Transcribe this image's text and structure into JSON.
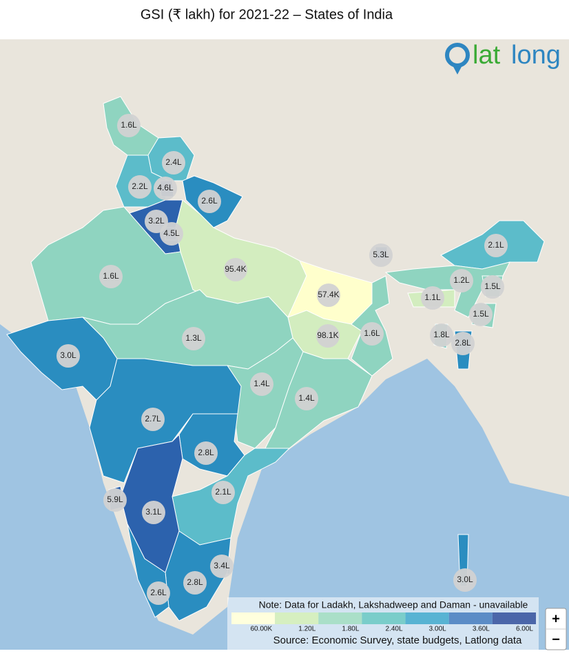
{
  "header": {
    "title": "GSI (₹ lakh) for 2021-22 – States of India"
  },
  "logo": {
    "part1": "lat",
    "part2": "long"
  },
  "regions": [
    {
      "label": "1.6L",
      "color": "#8fd4c0"
    },
    {
      "label": "2.4L",
      "color": "#5cbcca"
    },
    {
      "label": "2.2L",
      "color": "#5cbcca"
    },
    {
      "label": "4.6L",
      "color": "#2c62ad"
    },
    {
      "label": "2.6L",
      "color": "#2a8dc0"
    },
    {
      "label": "3.2L",
      "color": "#2c62ad"
    },
    {
      "label": "4.5L",
      "color": "#2c62ad"
    },
    {
      "label": "1.6L",
      "color": "#8fd4c0"
    },
    {
      "label": "95.4K",
      "color": "#d3edbf"
    },
    {
      "label": "57.4K",
      "color": "#ffffcc"
    },
    {
      "label": "5.3L",
      "color": "#2c62ad"
    },
    {
      "label": "2.1L",
      "color": "#5cbcca"
    },
    {
      "label": "1.2L",
      "color": "#8fd4c0"
    },
    {
      "label": "1.5L",
      "color": "#8fd4c0"
    },
    {
      "label": "1.1L",
      "color": "#d3edbf"
    },
    {
      "label": "1.5L",
      "color": "#8fd4c0"
    },
    {
      "label": "98.1K",
      "color": "#d3edbf"
    },
    {
      "label": "1.6L",
      "color": "#8fd4c0"
    },
    {
      "label": "1.8L",
      "color": "#7ecbc2"
    },
    {
      "label": "2.8L",
      "color": "#2a8dc0"
    },
    {
      "label": "1.3L",
      "color": "#8fd4c0"
    },
    {
      "label": "3.0L",
      "color": "#2a8dc0"
    },
    {
      "label": "1.4L",
      "color": "#8fd4c0"
    },
    {
      "label": "1.4L",
      "color": "#8fd4c0"
    },
    {
      "label": "2.7L",
      "color": "#2a8dc0"
    },
    {
      "label": "2.8L",
      "color": "#2a8dc0"
    },
    {
      "label": "2.1L",
      "color": "#5cbcca"
    },
    {
      "label": "5.9L",
      "color": "#2c62ad"
    },
    {
      "label": "3.1L",
      "color": "#2c62ad"
    },
    {
      "label": "3.4L",
      "color": "#2a8dc0"
    },
    {
      "label": "2.8L",
      "color": "#2a8dc0"
    },
    {
      "label": "2.6L",
      "color": "#2a8dc0"
    },
    {
      "label": "3.0L",
      "color": "#2a8dc0"
    }
  ],
  "legend": {
    "note": "Note: Data for Ladakh, Lakshadweep and Daman - unavailable",
    "colors": [
      "#ffffdd",
      "#d6efc0",
      "#aadfc8",
      "#7acdca",
      "#58b3d3",
      "#5b8cc6",
      "#4b66a9"
    ],
    "ticks": [
      "60.00K",
      "1.20L",
      "1.80L",
      "2.40L",
      "3.00L",
      "3.60L",
      "6.00L"
    ]
  },
  "source": "Source: Economic Survey, state budgets, Latlong data",
  "controls": {
    "zoom_in": "+",
    "zoom_out": "−"
  }
}
